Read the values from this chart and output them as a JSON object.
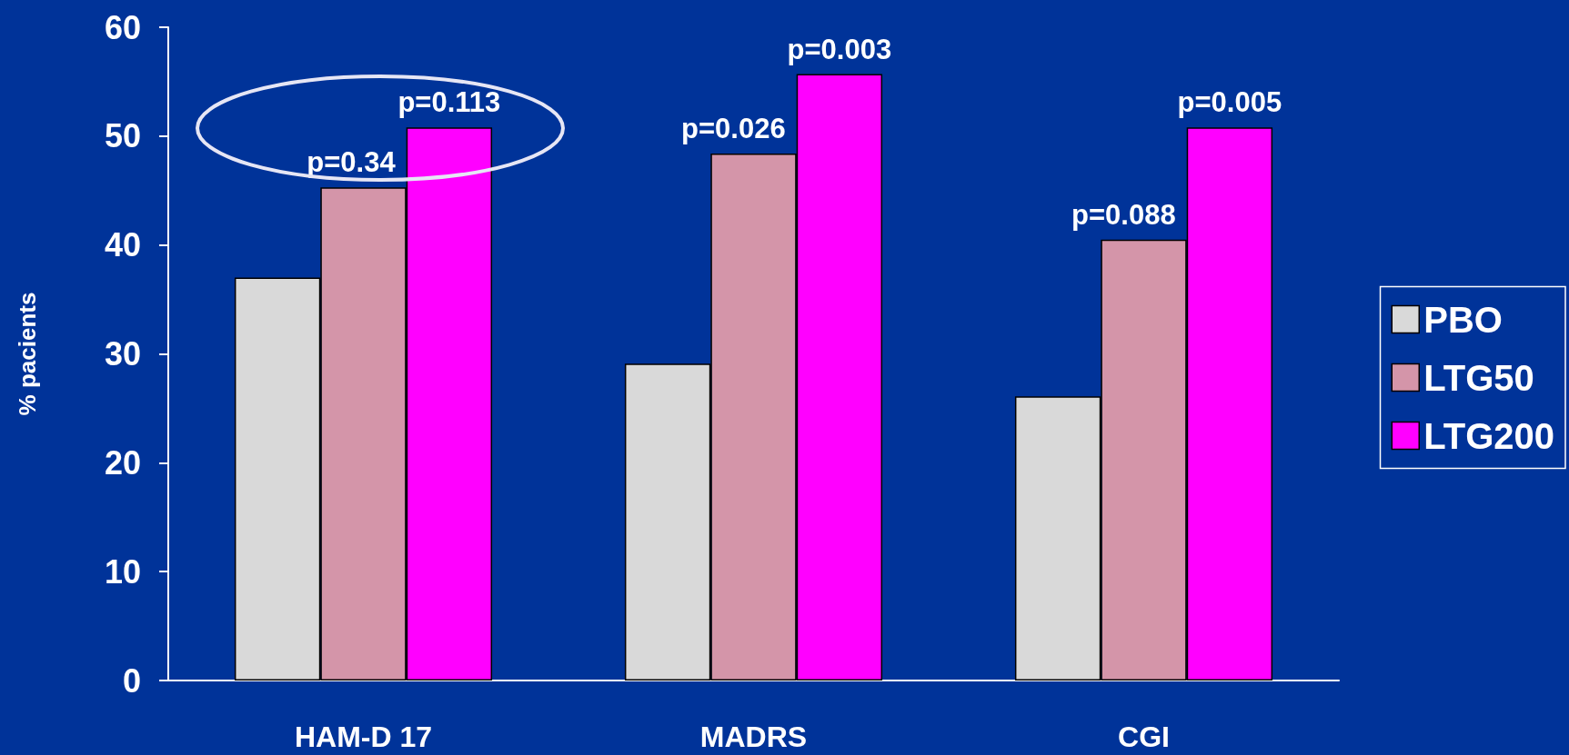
{
  "chart_data": {
    "type": "bar",
    "ylabel": "% pacients",
    "categories": [
      "HAM-D 17",
      "MADRS",
      "CGI"
    ],
    "series": [
      {
        "name": "PBO",
        "color": "#d9d9d9",
        "values": [
          37,
          29.1,
          26.1
        ]
      },
      {
        "name": "LTG50",
        "color": "#d495a9",
        "values": [
          45.3,
          48.4,
          40.5
        ]
      },
      {
        "name": "LTG200",
        "color": "#ff00ff",
        "values": [
          50.8,
          55.7,
          50.8
        ]
      }
    ],
    "annotations": [
      {
        "text": "p=0.34",
        "x": "HAM-D 17",
        "y": 45.3
      },
      "p=0.113",
      {
        "text": "p=0.026",
        "x": "MADRS",
        "y": 48.4
      },
      "p=0.003",
      {
        "text": "p=0.088",
        "x": "CGI",
        "y": 40.5
      },
      "p=0.005"
    ],
    "ylim": [
      0,
      60
    ],
    "yticks": [
      0,
      10,
      20,
      30,
      40,
      50,
      60
    ],
    "grid": false,
    "legend": "right"
  }
}
